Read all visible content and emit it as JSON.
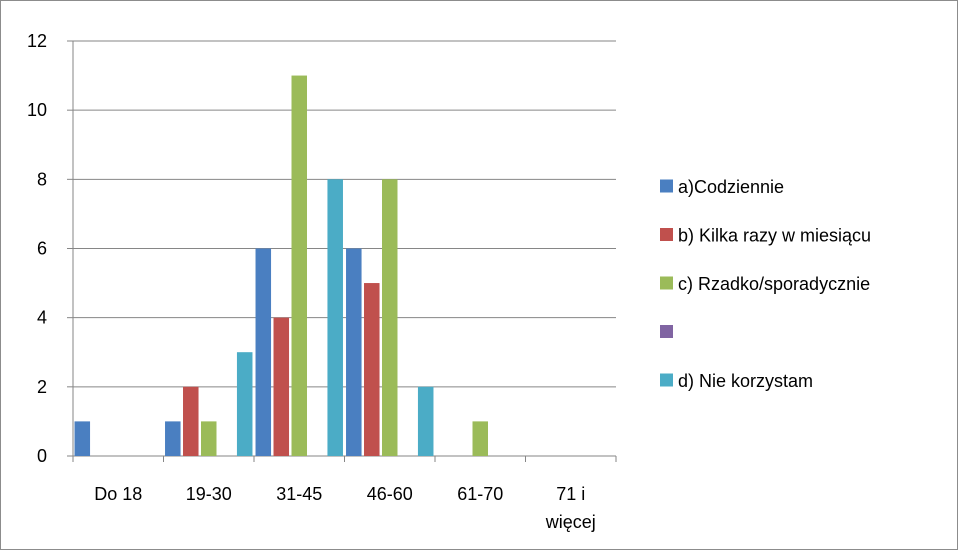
{
  "chart_data": {
    "type": "bar",
    "title": "",
    "xlabel": "",
    "ylabel": "",
    "ylim": [
      0,
      12
    ],
    "yticks": [
      0,
      2,
      4,
      6,
      8,
      10,
      12
    ],
    "grid": true,
    "legend_position": "right",
    "categories": [
      [
        "Do 18"
      ],
      [
        "19-30"
      ],
      [
        "31-45"
      ],
      [
        "46-60"
      ],
      [
        "61-70"
      ],
      [
        "71 i",
        "więcej"
      ]
    ],
    "series": [
      {
        "name": "a)Codziennie",
        "color": "#4a7fc1",
        "values": [
          1,
          1,
          6,
          6,
          0,
          0
        ]
      },
      {
        "name": "b) Kilka razy w miesiącu",
        "color": "#c0504d",
        "values": [
          0,
          2,
          4,
          5,
          0,
          0
        ]
      },
      {
        "name": "c) Rzadko/sporadycznie",
        "color": "#9bbb59",
        "values": [
          0,
          1,
          11,
          8,
          1,
          0
        ]
      },
      {
        "name": "",
        "color": "#8064a2",
        "values": [
          0,
          0,
          0,
          0,
          0,
          0
        ]
      },
      {
        "name": "d) Nie korzystam",
        "color": "#4bacc6",
        "values": [
          0,
          3,
          8,
          2,
          0,
          0
        ]
      }
    ]
  }
}
